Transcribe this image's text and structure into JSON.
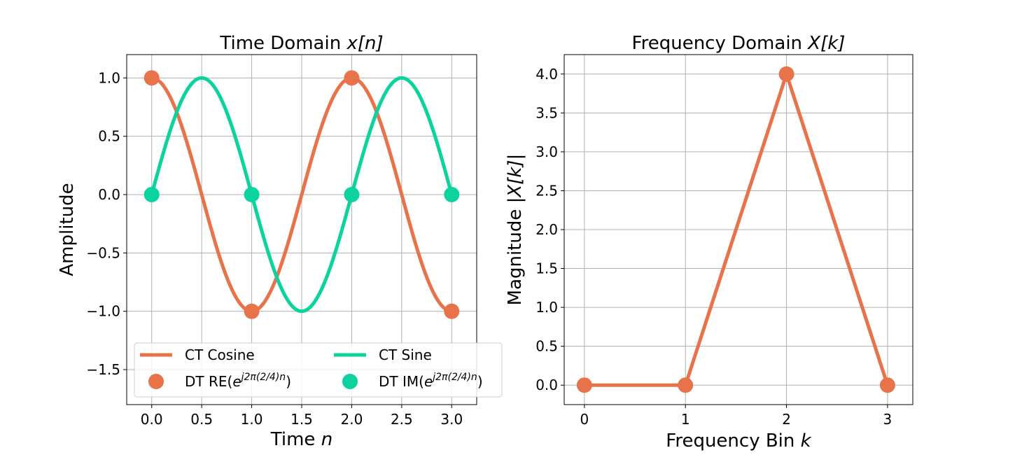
{
  "chart_data": [
    {
      "type": "line",
      "title": "Time Domain x[n]",
      "title_plain": "Time Domain ",
      "title_math": "x[n]",
      "xlabel_plain": "Time ",
      "xlabel_math": "n",
      "ylabel": "Amplitude",
      "xlim": [
        -0.25,
        3.25
      ],
      "ylim": [
        -1.8,
        1.2
      ],
      "xticks": [
        0.0,
        0.5,
        1.0,
        1.5,
        2.0,
        2.5,
        3.0
      ],
      "xtick_labels": [
        "0.0",
        "0.5",
        "1.0",
        "1.5",
        "2.0",
        "2.5",
        "3.0"
      ],
      "yticks": [
        1.0,
        0.5,
        0.0,
        -0.5,
        -1.0,
        -1.5
      ],
      "ytick_labels": [
        "1.0",
        "0.5",
        "0.0",
        "−0.5",
        "−1.0",
        "−1.5"
      ],
      "grid": true,
      "legend_placement": "lower-center",
      "series": [
        {
          "name": "CT Cosine",
          "kind": "line",
          "color": "#e8734a",
          "function": "cos(pi*t)",
          "t_range": [
            0,
            3
          ]
        },
        {
          "name": "CT Sine",
          "kind": "line",
          "color": "#0bd39e",
          "function": "sin(pi*t)",
          "t_range": [
            0,
            3
          ]
        },
        {
          "name": "DT RE(e^{j2π(2/4)n})",
          "kind": "points",
          "color": "#e8734a",
          "x": [
            0,
            1,
            2,
            3
          ],
          "y": [
            1.0,
            -1.0,
            1.0,
            -1.0
          ]
        },
        {
          "name": "DT IM(e^{j2π(2/4)n})",
          "kind": "points",
          "color": "#0bd39e",
          "x": [
            0,
            1,
            2,
            3
          ],
          "y": [
            0.0,
            0.0,
            0.0,
            0.0
          ]
        }
      ],
      "legend": [
        {
          "label": "CT Cosine",
          "marker": "line",
          "color": "#e8734a"
        },
        {
          "label": "CT Sine",
          "marker": "line",
          "color": "#0bd39e"
        },
        {
          "label_prefix": "DT RE(",
          "label_base": "e",
          "label_sup": "j2π(2/4)n",
          "label_suffix": ")",
          "marker": "dot",
          "color": "#e8734a"
        },
        {
          "label_prefix": "DT IM(",
          "label_base": "e",
          "label_sup": "j2π(2/4)n",
          "label_suffix": ")",
          "marker": "dot",
          "color": "#0bd39e"
        }
      ]
    },
    {
      "type": "line",
      "title": "Frequency Domain X[k]",
      "title_plain": "Frequency Domain ",
      "title_math": "X[k]",
      "xlabel_plain": "Frequency Bin ",
      "xlabel_math": "k",
      "ylabel_plain": "Magnitude ",
      "ylabel_math": "|X[k]|",
      "xlim": [
        -0.2,
        3.25
      ],
      "ylim": [
        -0.25,
        4.25
      ],
      "xticks": [
        0,
        1,
        2,
        3
      ],
      "xtick_labels": [
        "0",
        "1",
        "2",
        "3"
      ],
      "yticks": [
        0.0,
        0.5,
        1.0,
        1.5,
        2.0,
        2.5,
        3.0,
        3.5,
        4.0
      ],
      "ytick_labels": [
        "0.0",
        "0.5",
        "1.0",
        "1.5",
        "2.0",
        "2.5",
        "3.0",
        "3.5",
        "4.0"
      ],
      "grid": true,
      "series": [
        {
          "kind": "line+points",
          "color": "#e8734a",
          "x": [
            0,
            1,
            2,
            3
          ],
          "y": [
            0.0,
            0.0,
            4.0,
            0.0
          ]
        }
      ]
    }
  ]
}
